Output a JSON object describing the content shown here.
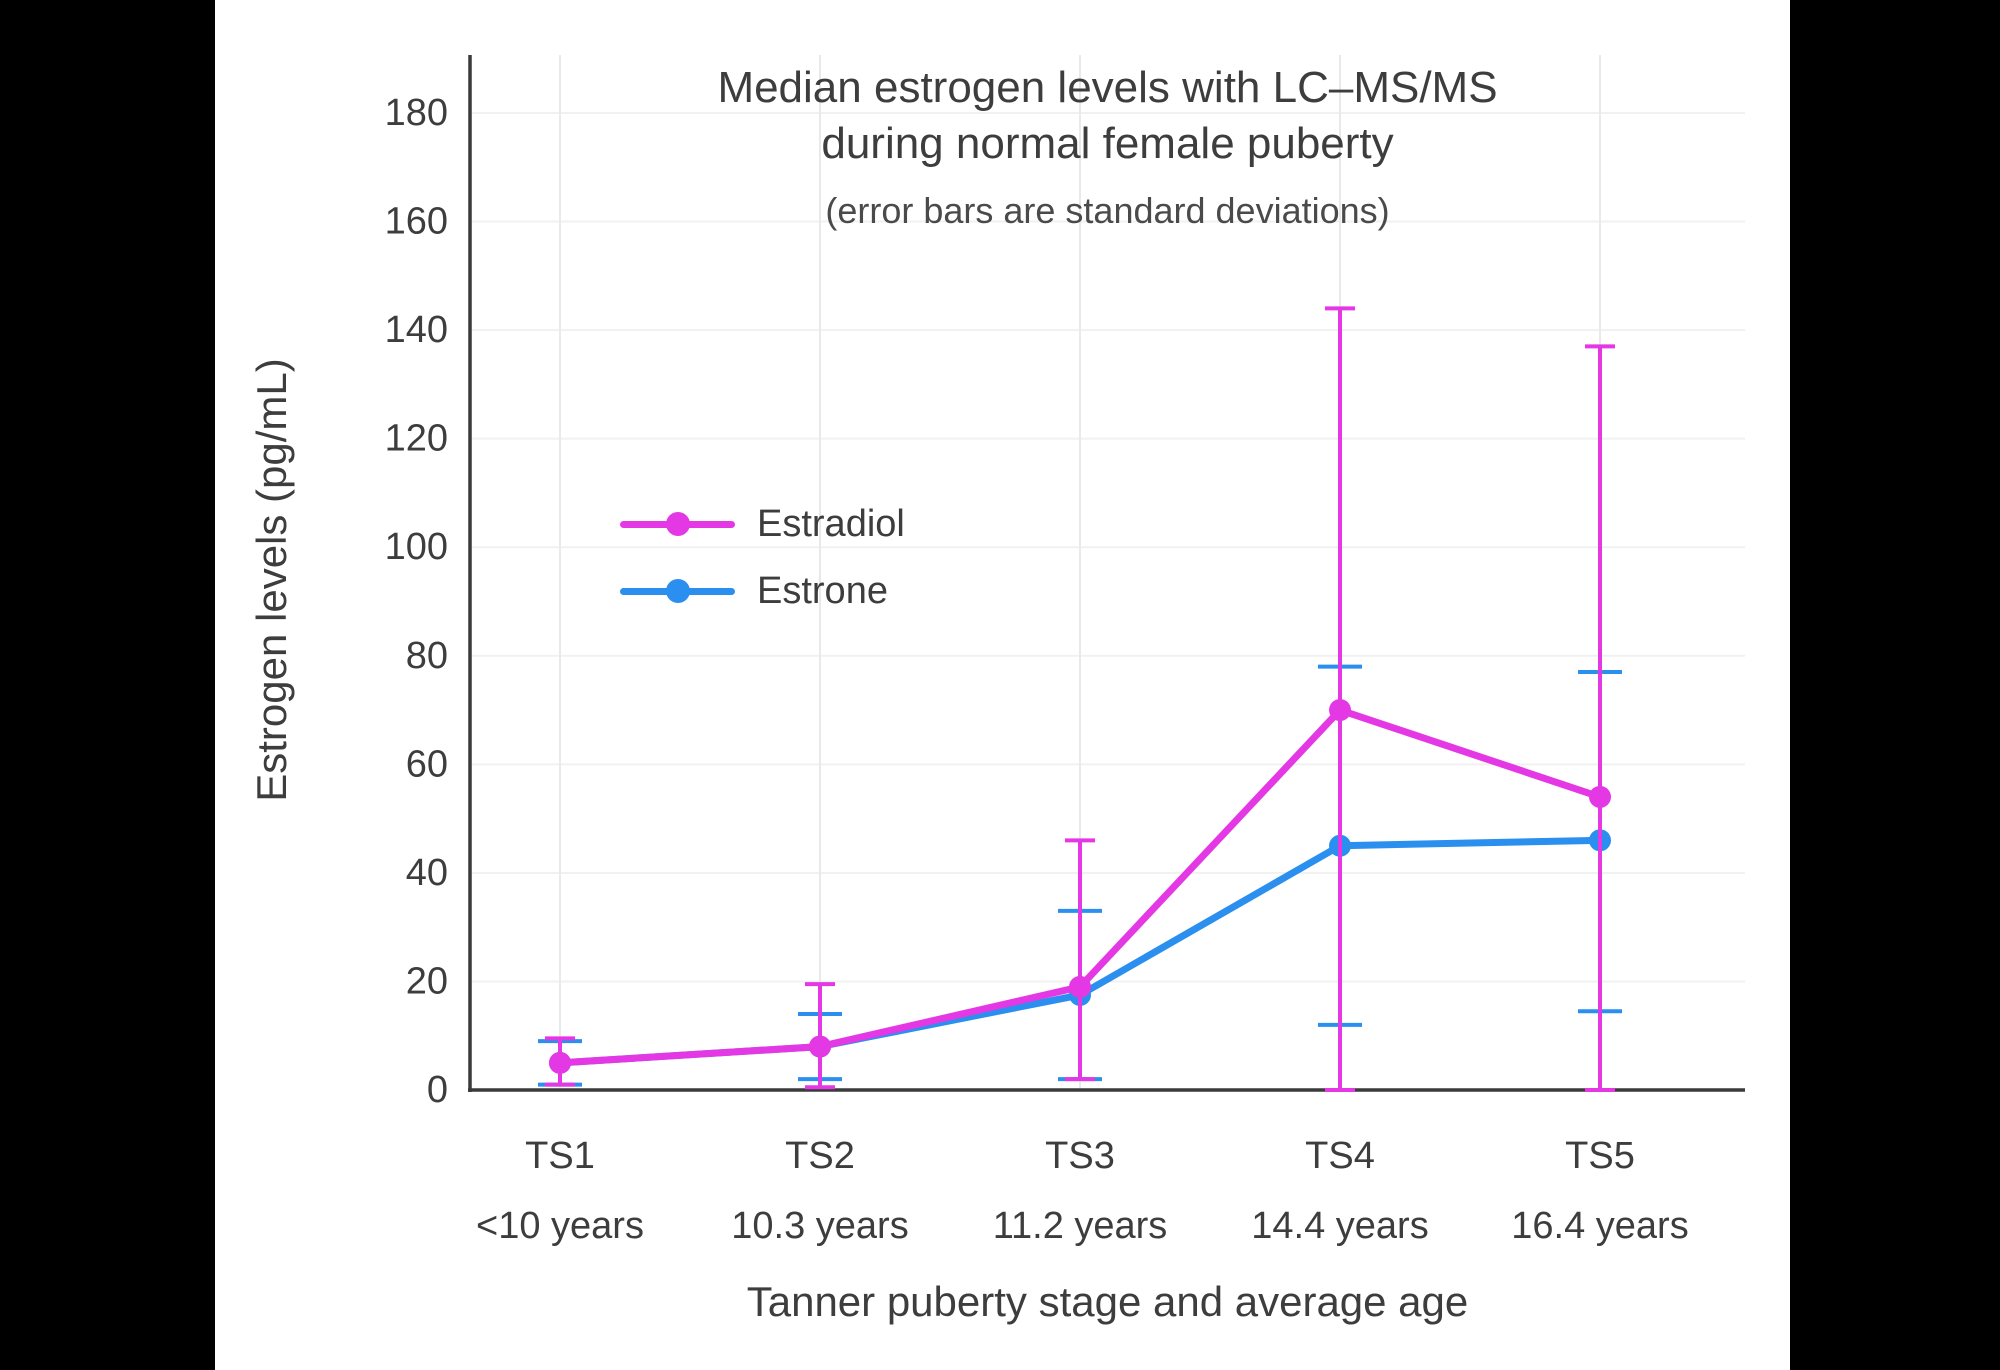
{
  "chart_data": {
    "type": "line",
    "title": "Median estrogen levels with LC–MS/MS during normal female puberty",
    "title_lines": [
      "Median estrogen levels with LC–MS/MS",
      "during normal female puberty"
    ],
    "subtitle": "(error bars are standard deviations)",
    "xlabel": "Tanner puberty stage and average age",
    "ylabel": "Estrogen levels (pg/mL)",
    "ylim": [
      0,
      180
    ],
    "y_tick_step": 20,
    "grid": true,
    "legend_position": "upper-left-inside",
    "categories": [
      "TS1",
      "TS2",
      "TS3",
      "TS4",
      "TS5"
    ],
    "category_ages": [
      "<10 years",
      "10.3 years",
      "11.2 years",
      "14.4 years",
      "16.4 years"
    ],
    "series": [
      {
        "name": "Estradiol",
        "color": "#e538e5",
        "values": [
          5,
          8,
          19,
          70,
          54
        ],
        "sd_low": [
          1,
          0.5,
          2,
          0,
          0
        ],
        "sd_high": [
          9.5,
          19.5,
          46,
          144,
          137
        ]
      },
      {
        "name": "Estrone",
        "color": "#2a8fee",
        "values": [
          5,
          8,
          17.5,
          45,
          46
        ],
        "sd_low": [
          1,
          2,
          2,
          12,
          14.5
        ],
        "sd_high": [
          9,
          14,
          33,
          78,
          77
        ]
      }
    ],
    "colors": {
      "estradiol": "#e538e5",
      "estrone": "#2a8fee",
      "text": "#3d3d3d",
      "axis": "#3a3a3a"
    }
  }
}
